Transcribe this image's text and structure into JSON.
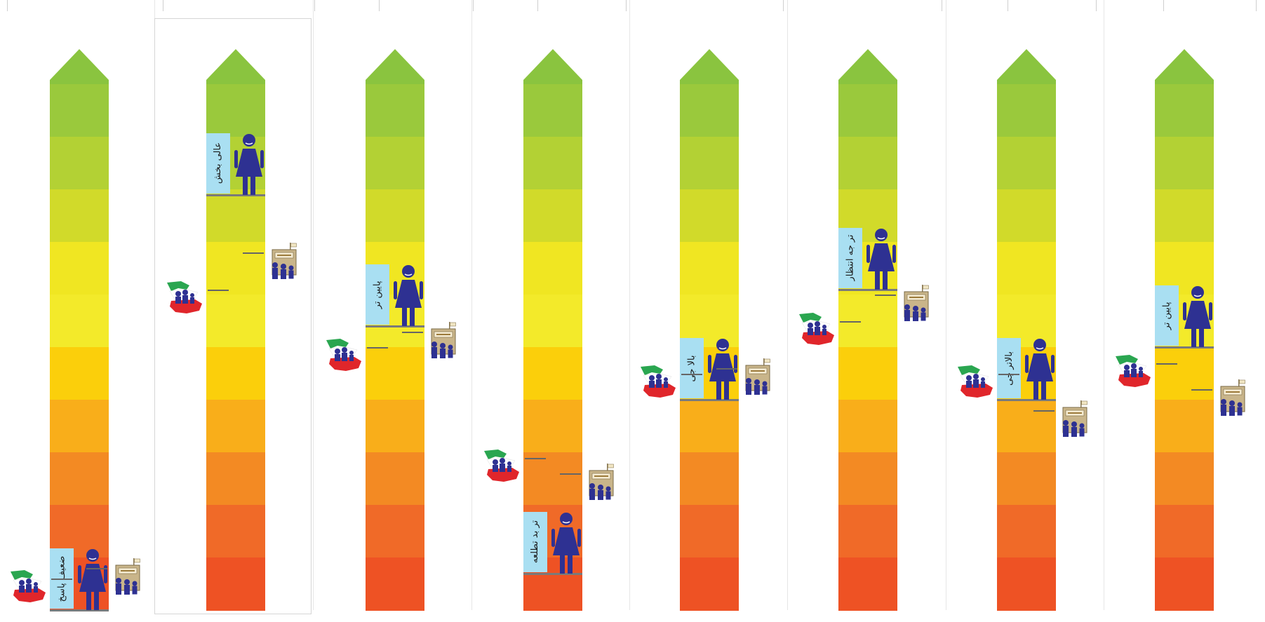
{
  "colors": {
    "segments_top_to_bottom": [
      "#8ac43f",
      "#8ac43f",
      "#9ac93c",
      "#b3d134",
      "#d1da2a",
      "#f0e622",
      "#f3ea2a",
      "#fbcf0b",
      "#f9ae1a",
      "#f38a23",
      "#f06a28",
      "#ee5224"
    ],
    "label_bg": "#a9dff2",
    "girl_figure": "#2e3192",
    "marker": "#7a7a7a"
  },
  "icons": {
    "figure": "girl-figure-icon",
    "country": "country-map-flag-icon",
    "school": "school-building-icon"
  },
  "panels": [
    {
      "label": "ضعیف پاسخ",
      "girl_level": 0.0,
      "country_level": 0.06,
      "school_level": 0.08
    },
    {
      "label": "عالی بخش",
      "girl_level": 0.79,
      "country_level": 0.61,
      "school_level": 0.68
    },
    {
      "label": "پایین تر",
      "girl_level": 0.54,
      "country_level": 0.5,
      "school_level": 0.53
    },
    {
      "label": "تر بد تطلعه",
      "girl_level": 0.07,
      "country_level": 0.29,
      "school_level": 0.26
    },
    {
      "label": "بالا جی",
      "girl_level": 0.4,
      "country_level": 0.45,
      "school_level": 0.46
    },
    {
      "label": "تر جه انتظار",
      "girl_level": 0.61,
      "country_level": 0.55,
      "school_level": 0.6
    },
    {
      "label": "بالاتر جی",
      "girl_level": 0.4,
      "country_level": 0.45,
      "school_level": 0.38
    },
    {
      "label": "پایین تر",
      "girl_level": 0.5,
      "country_level": 0.47,
      "school_level": 0.42
    }
  ]
}
